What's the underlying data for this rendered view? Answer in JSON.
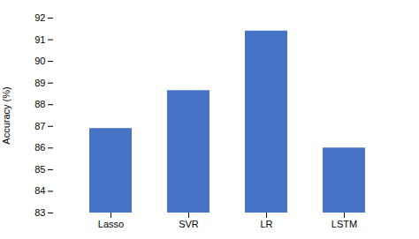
{
  "chart_data": {
    "type": "bar",
    "categories": [
      "Lasso",
      "SVR",
      "LR",
      "LSTM"
    ],
    "values": [
      86.9,
      88.65,
      91.4,
      86.0
    ],
    "color": "#4472C4",
    "ylabel": "Accuracy (%)",
    "ylim": [
      83,
      92
    ],
    "yticks": [
      83,
      84,
      85,
      86,
      87,
      88,
      89,
      90,
      91,
      92
    ],
    "grid": false
  }
}
